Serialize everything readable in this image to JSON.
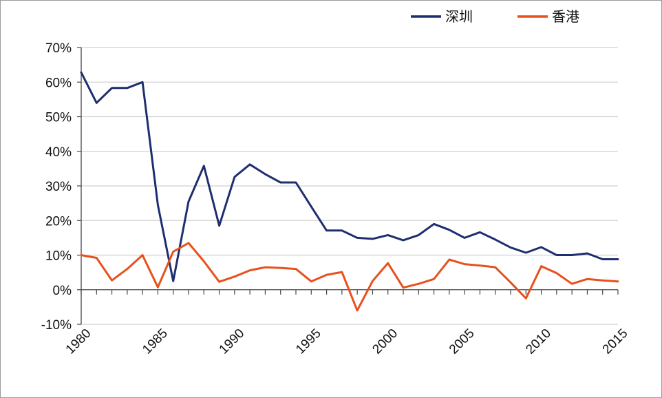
{
  "chart_data": {
    "type": "line",
    "x": [
      1980,
      1981,
      1982,
      1983,
      1984,
      1985,
      1986,
      1987,
      1988,
      1989,
      1990,
      1991,
      1992,
      1993,
      1994,
      1995,
      1996,
      1997,
      1998,
      1999,
      2000,
      2001,
      2002,
      2003,
      2004,
      2005,
      2006,
      2007,
      2008,
      2009,
      2010,
      2011,
      2012,
      2013,
      2014,
      2015
    ],
    "series": [
      {
        "name": "深圳",
        "color": "#1f2e6e",
        "values": [
          62.8,
          54.0,
          58.3,
          58.3,
          60.0,
          24.5,
          2.5,
          25.5,
          35.8,
          18.5,
          32.6,
          36.2,
          33.4,
          31.0,
          31.0,
          24.0,
          17.1,
          17.1,
          15.0,
          14.7,
          15.8,
          14.3,
          15.8,
          19.0,
          17.3,
          15.0,
          16.6,
          14.5,
          12.2,
          10.7,
          12.3,
          10.0,
          10.0,
          10.5,
          8.8,
          8.8
        ]
      },
      {
        "name": "香港",
        "color": "#e8501c",
        "values": [
          10.0,
          9.2,
          2.7,
          6.0,
          10.0,
          0.7,
          11.0,
          13.5,
          8.2,
          2.3,
          3.8,
          5.6,
          6.5,
          6.3,
          6.0,
          2.4,
          4.3,
          5.1,
          -6.0,
          2.5,
          7.7,
          0.6,
          1.7,
          3.1,
          8.7,
          7.4,
          7.0,
          6.5,
          2.1,
          -2.5,
          6.8,
          4.8,
          1.7,
          3.1,
          2.7,
          2.4
        ]
      }
    ],
    "y_ticks": [
      "70%",
      "60%",
      "50%",
      "40%",
      "30%",
      "20%",
      "10%",
      "0%",
      "-10%"
    ],
    "y_tick_values": [
      70,
      60,
      50,
      40,
      30,
      20,
      10,
      0,
      -10
    ],
    "x_ticks": [
      "1980",
      "1985",
      "1990",
      "1995",
      "2000",
      "2005",
      "2010",
      "2015"
    ],
    "x_tick_values": [
      1980,
      1985,
      1990,
      1995,
      2000,
      2005,
      2010,
      2015
    ],
    "ylim": [
      -10,
      70
    ],
    "xlim": [
      1980,
      2015
    ],
    "grid": true,
    "legend_position": "top-right",
    "gridline_color": "#d0d0d0",
    "axis_color": "#444444"
  }
}
